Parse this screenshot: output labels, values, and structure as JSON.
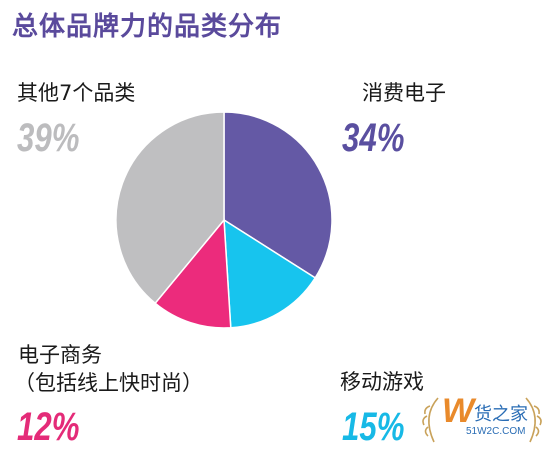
{
  "chart_data": {
    "type": "pie",
    "title": "总体品牌力的品类分布",
    "slices": [
      {
        "label": "消费电子",
        "value": 34,
        "value_label": "34%",
        "color": "#6459a5"
      },
      {
        "label": "移动游戏",
        "value": 15,
        "value_label": "15%",
        "color": "#17c4ee"
      },
      {
        "label": "电子商务",
        "sublabel": "（包括线上快时尚）",
        "value": 12,
        "value_label": "12%",
        "color": "#ec2b7c"
      },
      {
        "label": "其他7个品类",
        "value": 39,
        "value_label": "39%",
        "color": "#bfbfc1"
      }
    ],
    "start_angle": "12 o'clock",
    "direction": "clockwise",
    "legend": "none"
  },
  "watermark": {
    "logo_letter": "W",
    "name": "货之家",
    "url": "51W2C.COM",
    "color": "#2a6db5",
    "accent": "#e98a2b"
  }
}
